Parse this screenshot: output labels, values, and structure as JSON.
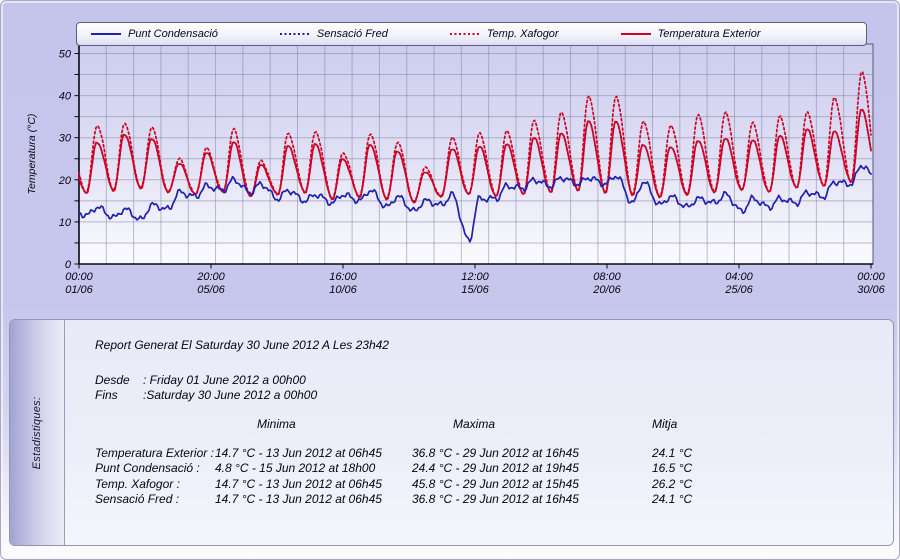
{
  "legend": {
    "items": [
      {
        "label": "Punt Condensació",
        "color": "#2020b0",
        "style": "solid"
      },
      {
        "label": "Sensació Fred",
        "color": "#2020b0",
        "style": "dotted"
      },
      {
        "label": "Temp. Xafogor",
        "color": "#d40020",
        "style": "dotted"
      },
      {
        "label": "Temperatura Exterior",
        "color": "#d40020",
        "style": "solid"
      }
    ]
  },
  "chart_data": {
    "type": "line",
    "ylabel": "Temperatura (°C)",
    "ylim": [
      0,
      50
    ],
    "ytick_label_step": 10,
    "ytick_grid_step": 5,
    "grid": true,
    "legend_position": "top",
    "x_hours_total": 696,
    "x_days_total": 29,
    "xticks": [
      {
        "time": "00:00",
        "date": "01/06",
        "hour": 0
      },
      {
        "time": "20:00",
        "date": "05/06",
        "hour": 116
      },
      {
        "time": "16:00",
        "date": "10/06",
        "hour": 232
      },
      {
        "time": "12:00",
        "date": "15/06",
        "hour": 348
      },
      {
        "time": "08:00",
        "date": "20/06",
        "hour": 464
      },
      {
        "time": "04:00",
        "date": "25/06",
        "hour": 580
      },
      {
        "time": "00:00",
        "date": "30/06",
        "hour": 696
      }
    ],
    "daily_min_hour": 6.75,
    "daily_max_hour": 15.75,
    "series": [
      {
        "name": "Sensació Fred",
        "color": "#2020b0",
        "line": "dotted",
        "noise": 0.3,
        "phase": 1.0,
        "daily_min": [
          17,
          17.5,
          18,
          17,
          16.5,
          17,
          16,
          16.5,
          17,
          15.5,
          16,
          15.5,
          14.7,
          16,
          16.5,
          16,
          16.5,
          17,
          17.5,
          17,
          16.5,
          16,
          16.5,
          17,
          17.5,
          17,
          18,
          18.5,
          19.5
        ],
        "daily_max": [
          29,
          31,
          30,
          24,
          26.5,
          29,
          23.5,
          28,
          28.5,
          25,
          28.5,
          27,
          22,
          27.5,
          28,
          28.5,
          30,
          31,
          34,
          34,
          28.5,
          28,
          29.5,
          30,
          29.5,
          30.5,
          32,
          31.5,
          36.8
        ]
      },
      {
        "name": "Temp. Xafogor",
        "color": "#d40020",
        "line": "dotted",
        "noise": 0.3,
        "phase": 2.2,
        "daily_min": [
          17,
          17.5,
          18,
          17,
          16.5,
          17,
          16,
          16.5,
          17,
          15.5,
          16,
          15.5,
          14.7,
          16,
          16.5,
          16,
          16.5,
          17,
          17.5,
          17,
          16.5,
          16,
          16.5,
          17,
          17.5,
          17,
          18,
          18.5,
          19.5
        ],
        "daily_max": [
          33,
          33.5,
          32.5,
          25,
          27.5,
          32,
          24.5,
          31,
          31.5,
          26.5,
          31,
          29,
          23,
          30,
          31,
          31.5,
          34,
          36,
          40,
          40,
          34,
          33,
          35.5,
          36,
          33.5,
          35,
          36,
          39.5,
          45.8
        ]
      },
      {
        "name": "Temperatura Exterior",
        "color": "#d40020",
        "line": "solid",
        "noise": 0.3,
        "phase": 1.0,
        "daily_min": [
          17,
          17.5,
          18,
          17,
          16.5,
          17,
          16,
          16.5,
          17,
          15.5,
          16,
          15.5,
          14.7,
          16,
          16.5,
          16,
          16.5,
          17,
          17.5,
          17,
          16.5,
          16,
          16.5,
          17,
          17.5,
          17,
          18,
          18.5,
          19.5
        ],
        "daily_max": [
          29,
          31,
          30,
          24,
          26.5,
          29,
          23.5,
          28,
          28.5,
          25,
          28.5,
          27,
          22,
          27.5,
          28,
          28.5,
          30,
          31,
          34,
          34,
          28.5,
          28,
          29.5,
          30,
          29.5,
          30.5,
          32,
          31.5,
          36.8
        ]
      },
      {
        "name": "Punt Condensació",
        "color": "#2020b0",
        "line": "solid",
        "noise": 0.9,
        "phase": 3.1,
        "daily_min": [
          11.5,
          11,
          10.5,
          13,
          16,
          17.5,
          17,
          15.5,
          15,
          14.5,
          15,
          13.5,
          12.5,
          14,
          5.5,
          15.5,
          18,
          18.5,
          19,
          19,
          14.5,
          14,
          13.5,
          14.5,
          12.5,
          13.5,
          14.5,
          16,
          19
        ],
        "daily_max": [
          13.5,
          13,
          14,
          17,
          18.5,
          20,
          19,
          17.5,
          16.5,
          16.5,
          17.5,
          16,
          15,
          16.5,
          15.5,
          18.5,
          20,
          20.5,
          20.5,
          21,
          19.5,
          16,
          15.5,
          16.5,
          15.5,
          15.5,
          17,
          19.5,
          23.5
        ]
      }
    ]
  },
  "stats": {
    "side_label": "Estadistiques:",
    "report_line": "Report Generat El Saturday 30 June 2012 A Les 23h42",
    "from_label": "Desde",
    "from_value": ": Friday 01 June 2012 a 00h00",
    "to_label": "Fins",
    "to_value": ":Saturday 30 June 2012 a 00h00",
    "columns": [
      "Minima",
      "Maxima",
      "Mitja"
    ],
    "rows": [
      {
        "label": "Temperatura Exterior :",
        "minima": "14.7 °C - 13 Jun 2012 at 06h45",
        "maxima": "36.8 °C - 29 Jun 2012 at 16h45",
        "mitja": "24.1 °C"
      },
      {
        "label": "Punt Condensació :",
        "minima": "4.8 °C - 15 Jun 2012 at 18h00",
        "maxima": "24.4 °C - 29 Jun 2012 at 19h45",
        "mitja": "16.5 °C"
      },
      {
        "label": "Temp. Xafogor :",
        "minima": "14.7 °C - 13 Jun 2012 at 06h45",
        "maxima": "45.8 °C - 29 Jun 2012 at 15h45",
        "mitja": "26.2 °C"
      },
      {
        "label": "Sensació Fred :",
        "minima": "14.7 °C - 13 Jun 2012 at 06h45",
        "maxima": "36.8 °C - 29 Jun 2012 at 16h45",
        "mitja": "24.1 °C"
      }
    ]
  }
}
